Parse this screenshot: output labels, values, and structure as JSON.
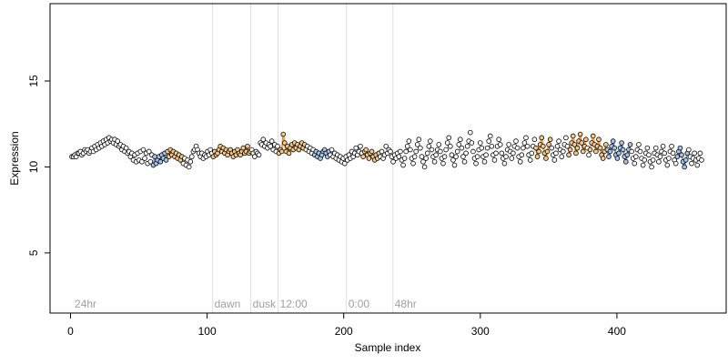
{
  "chart_data": {
    "type": "scatter",
    "title": "",
    "xlabel": "Sample index",
    "ylabel": "Expression",
    "xlim": [
      -15,
      480
    ],
    "ylim": [
      1.5,
      19.5
    ],
    "xticks": [
      0,
      100,
      200,
      300,
      400
    ],
    "yticks": [
      5,
      10,
      15
    ],
    "grid": false,
    "colors": {
      "point_default": "#ffffff",
      "point_orange": "#f5c98a",
      "point_blue": "#a8c4e6",
      "line_orange": "#e8a35a",
      "line_blue": "#7ea6d8",
      "vline": "#dddddd",
      "annotation": "#a0a0a0"
    },
    "vlines": [
      {
        "x": 104,
        "label": "dawn"
      },
      {
        "x": 132,
        "label": "dusk"
      },
      {
        "x": 152,
        "label": "12:00"
      },
      {
        "x": 202,
        "label": "0:00"
      },
      {
        "x": 236,
        "label": "48hr"
      }
    ],
    "corner_label": {
      "x": 3,
      "label": "24hr"
    },
    "highlight_segments": [
      {
        "from": 60,
        "to": 70,
        "color": "blue"
      },
      {
        "from": 70,
        "to": 82,
        "color": "orange"
      },
      {
        "from": 104,
        "to": 132,
        "color": "orange"
      },
      {
        "from": 152,
        "to": 172,
        "color": "orange"
      },
      {
        "from": 178,
        "to": 190,
        "color": "blue"
      },
      {
        "from": 214,
        "to": 226,
        "color": "orange"
      },
      {
        "from": 340,
        "to": 352,
        "color": "orange"
      },
      {
        "from": 364,
        "to": 378,
        "color": "orange"
      },
      {
        "from": 380,
        "to": 392,
        "color": "orange"
      },
      {
        "from": 392,
        "to": 410,
        "color": "blue"
      },
      {
        "from": 444,
        "to": 452,
        "color": "blue"
      }
    ],
    "series": [
      {
        "x_start": 1,
        "x_end": 462,
        "values": [
          10.6,
          10.6,
          10.7,
          10.6,
          10.8,
          10.8,
          10.9,
          10.7,
          10.8,
          11.0,
          10.9,
          11.0,
          10.8,
          10.9,
          11.1,
          10.9,
          11.2,
          11.0,
          11.3,
          11.1,
          11.4,
          11.2,
          11.5,
          11.3,
          11.6,
          11.4,
          11.7,
          11.5,
          11.6,
          11.4,
          11.6,
          11.3,
          11.5,
          11.2,
          11.3,
          11.0,
          11.2,
          10.9,
          11.1,
          10.8,
          10.9,
          10.6,
          10.8,
          10.4,
          10.7,
          10.3,
          10.8,
          10.4,
          10.9,
          10.3,
          11.0,
          10.5,
          10.8,
          10.2,
          10.9,
          10.3,
          10.7,
          10.1,
          10.6,
          10.2,
          10.4,
          10.6,
          10.3,
          10.7,
          10.5,
          10.8,
          10.4,
          10.9,
          10.6,
          11.0,
          10.7,
          10.9,
          10.6,
          10.8,
          10.5,
          10.7,
          10.4,
          10.6,
          10.2,
          10.5,
          10.1,
          10.4,
          10.0,
          10.3,
          10.6,
          10.9,
          11.0,
          11.2,
          11.0,
          10.8,
          10.6,
          10.8,
          10.5,
          10.7,
          10.6,
          10.9,
          10.7,
          11.0,
          10.8,
          10.6,
          10.9,
          10.7,
          10.8,
          11.0,
          11.2,
          10.9,
          11.1,
          10.8,
          11.0,
          10.7,
          10.9,
          11.0,
          10.8,
          10.6,
          10.9,
          10.7,
          11.0,
          10.8,
          10.7,
          10.9,
          11.1,
          10.8,
          10.9,
          11.2,
          10.8,
          10.9,
          11.0,
          10.8,
          10.6,
          10.9,
          10.8,
          10.7,
          11.4,
          11.3,
          11.6,
          11.2,
          11.4,
          11.1,
          11.3,
          11.2,
          11.5,
          11.0,
          11.3,
          10.9,
          11.2,
          10.8,
          11.0,
          10.9,
          11.9,
          11.4,
          10.9,
          11.2,
          10.8,
          11.1,
          11.3,
          11.0,
          11.4,
          11.1,
          11.3,
          11.0,
          11.2,
          11.4,
          11.1,
          11.3,
          11.0,
          11.2,
          10.9,
          11.1,
          10.8,
          11.0,
          10.7,
          10.9,
          10.6,
          10.8,
          10.5,
          10.7,
          10.9,
          11.0,
          10.8,
          10.6,
          10.9,
          10.7,
          11.0,
          10.6,
          10.8,
          10.5,
          10.7,
          10.4,
          10.6,
          10.3,
          10.5,
          10.2,
          10.6,
          10.4,
          10.7,
          10.5,
          10.9,
          10.6,
          10.8,
          11.1,
          10.7,
          10.9,
          11.2,
          10.8,
          10.6,
          10.9,
          11.0,
          10.7,
          10.5,
          10.8,
          10.9,
          10.6,
          10.4,
          10.7,
          10.5,
          10.8,
          10.6,
          10.9,
          10.5,
          10.7,
          11.2,
          10.8,
          11.0,
          10.9,
          10.6,
          10.3,
          10.7,
          10.5,
          10.8,
          10.6,
          10.9,
          10.4,
          10.1,
          10.5,
          10.9,
          11.2,
          11.5,
          11.0,
          10.5,
          10.2,
          10.6,
          10.9,
          11.3,
          11.6,
          11.1,
          10.6,
          10.3,
          10.0,
          10.5,
          10.8,
          11.2,
          11.5,
          11.0,
          10.6,
          10.3,
          10.7,
          11.0,
          11.3,
          10.9,
          10.5,
          10.2,
          10.6,
          11.0,
          11.4,
          11.7,
          11.2,
          10.7,
          10.4,
          10.1,
          10.6,
          10.9,
          11.3,
          11.6,
          11.1,
          10.6,
          10.3,
          10.8,
          11.2,
          11.5,
          12.0,
          11.4,
          10.9,
          10.5,
          10.2,
          10.6,
          11.0,
          11.4,
          11.1,
          10.6,
          10.3,
          10.7,
          11.1,
          11.5,
          11.8,
          11.2,
          10.7,
          10.4,
          10.8,
          11.2,
          11.6,
          11.3,
          10.8,
          10.5,
          10.2,
          10.6,
          11.0,
          11.3,
          10.9,
          10.5,
          10.8,
          11.2,
          11.5,
          11.1,
          10.6,
          10.3,
          10.7,
          11.1,
          11.4,
          11.7,
          11.2,
          10.7,
          10.4,
          10.8,
          11.2,
          11.6,
          11.1,
          10.6,
          10.9,
          11.3,
          11.7,
          11.2,
          10.8,
          10.5,
          10.9,
          11.3,
          11.6,
          11.1,
          10.7,
          10.4,
          10.8,
          11.2,
          11.5,
          11.0,
          10.6,
          10.9,
          11.3,
          11.7,
          11.2,
          10.7,
          11.0,
          11.4,
          11.8,
          11.3,
          10.8,
          11.1,
          11.5,
          11.9,
          11.4,
          10.9,
          11.2,
          11.6,
          11.1,
          10.7,
          11.0,
          11.4,
          11.8,
          11.3,
          10.9,
          11.2,
          11.6,
          11.1,
          10.7,
          10.5,
          10.9,
          11.3,
          11.0,
          10.6,
          10.9,
          11.2,
          11.5,
          11.1,
          10.7,
          10.5,
          10.8,
          11.1,
          11.4,
          11.0,
          10.6,
          10.3,
          10.7,
          11.0,
          11.3,
          10.9,
          10.5,
          10.2,
          10.6,
          11.0,
          11.3,
          10.9,
          10.5,
          10.1,
          10.4,
          10.8,
          11.1,
          10.7,
          10.3,
          10.0,
          10.4,
          10.8,
          11.1,
          10.7,
          10.3,
          10.6,
          10.9,
          11.2,
          10.8,
          10.4,
          10.1,
          10.5,
          10.9,
          11.2,
          10.8,
          10.4,
          10.2,
          10.6,
          10.9,
          11.1,
          10.7,
          10.3,
          10.0,
          10.4,
          10.8,
          11.0,
          10.6,
          10.2,
          10.5,
          10.8,
          10.4,
          10.1,
          10.5,
          10.8,
          10.4
        ]
      }
    ]
  }
}
